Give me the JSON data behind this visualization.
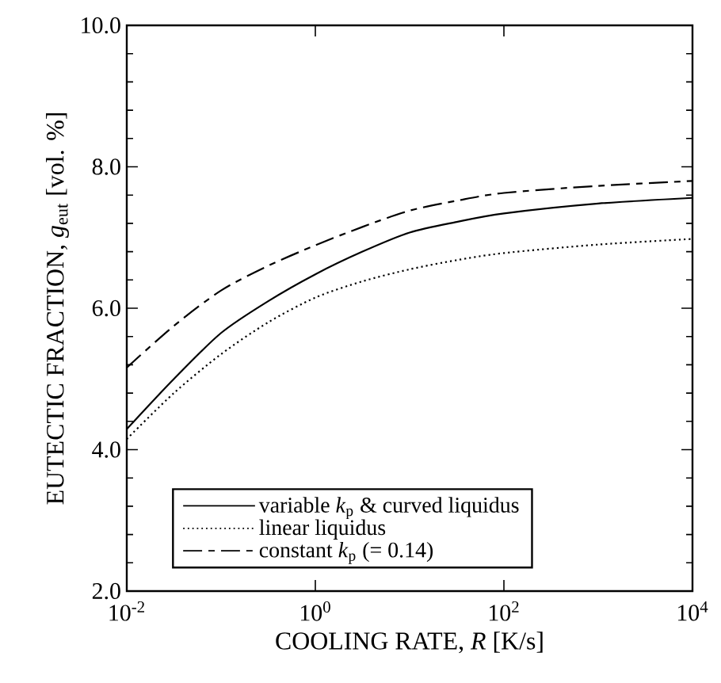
{
  "chart_data": {
    "type": "line",
    "xlabel": "COOLING RATE, *R* [K/s]",
    "ylabel": "EUTECTIC FRACTION, *g*$_{eut}$ [vol. %]",
    "x": [
      0.01,
      0.0316,
      0.1,
      0.316,
      1,
      3.16,
      10,
      31.6,
      100,
      1000,
      10000
    ],
    "log": "x",
    "xlim": [
      0.01,
      10000
    ],
    "ylim": [
      2,
      10
    ],
    "xticks": [
      {
        "value": 0.01,
        "label": "10$^{-2}$"
      },
      {
        "value": 1,
        "label": "10$^{0}$"
      },
      {
        "value": 100,
        "label": "10$^{2}$"
      },
      {
        "value": 10000,
        "label": "10$^{4}$"
      }
    ],
    "yticks": [
      {
        "value": 2,
        "label": "2.0"
      },
      {
        "value": 4,
        "label": "4.0"
      },
      {
        "value": 6,
        "label": "6.0"
      },
      {
        "value": 8,
        "label": "8.0"
      },
      {
        "value": 10,
        "label": "10.0"
      }
    ],
    "legend": "bottom",
    "grid": false,
    "marker": "none",
    "series": [
      {
        "name": "variable *k*$_{p}$ & curved liquidus",
        "color": "#000000",
        "line_style": "solid",
        "values": [
          4.29,
          5.0,
          5.65,
          6.1,
          6.48,
          6.8,
          7.07,
          7.22,
          7.34,
          7.48,
          7.56
        ]
      },
      {
        "name": "linear liquidus",
        "color": "#000000",
        "line_style": "dotted",
        "values": [
          4.15,
          4.8,
          5.35,
          5.8,
          6.15,
          6.38,
          6.55,
          6.68,
          6.78,
          6.9,
          6.98
        ]
      },
      {
        "name": "constant *k*$_{p}$ (= 0.14)",
        "color": "#000000",
        "line_style": "dashed",
        "values": [
          5.16,
          5.75,
          6.25,
          6.6,
          6.89,
          7.15,
          7.38,
          7.52,
          7.63,
          7.73,
          7.8
        ]
      }
    ]
  }
}
